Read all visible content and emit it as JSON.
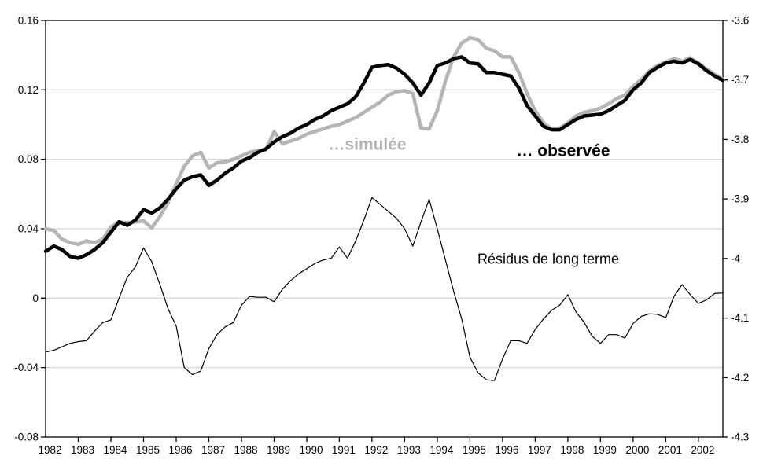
{
  "chart_data": {
    "type": "line",
    "title": "",
    "x_start_year": 1982,
    "x_step_years": 0.25,
    "grid": "horizontal-only",
    "frame": true,
    "background": "#ffffff",
    "gridline_color": "#c9c9c9",
    "frame_color": "#000000",
    "left_axis": {
      "range": [
        -0.08,
        0.16
      ],
      "tick_values": [
        0.16,
        0.12,
        0.08,
        0.04,
        0,
        -0.04,
        -0.08
      ],
      "tick_labels": [
        "0.16",
        "0.12",
        "0.08",
        "0.04",
        "0",
        "-0.04",
        "-0.08"
      ]
    },
    "right_axis": {
      "range": [
        -4.3,
        -3.6
      ],
      "tick_values": [
        -3.6,
        -3.7,
        -3.8,
        -3.9,
        -4,
        -4.1,
        -4.2,
        -4.3
      ],
      "tick_labels": [
        "-3.6",
        "-3.7",
        "-3.8",
        "-3.9",
        "-4",
        "-4.1",
        "-4.2",
        "-4.3"
      ]
    },
    "x_axis": {
      "year_labels": [
        "1982",
        "1983",
        "1984",
        "1985",
        "1986",
        "1987",
        "1988",
        "1989",
        "1990",
        "1991",
        "1992",
        "1993",
        "1994",
        "1995",
        "1996",
        "1997",
        "1998",
        "1999",
        "2000",
        "2001",
        "2002"
      ]
    },
    "series": [
      {
        "name": "simulée",
        "color": "#b5b5b5",
        "stroke_width": 4.5,
        "axis": "left",
        "values": [
          0.04,
          0.039,
          0.034,
          0.032,
          0.031,
          0.033,
          0.032,
          0.034,
          0.041,
          0.044,
          0.0435,
          0.044,
          0.0445,
          0.0405,
          0.047,
          0.055,
          0.066,
          0.076,
          0.082,
          0.084,
          0.075,
          0.078,
          0.0785,
          0.08,
          0.082,
          0.084,
          0.085,
          0.0855,
          0.096,
          0.089,
          0.0905,
          0.092,
          0.0945,
          0.096,
          0.0975,
          0.099,
          0.1,
          0.102,
          0.104,
          0.107,
          0.11,
          0.113,
          0.117,
          0.119,
          0.1195,
          0.118,
          0.098,
          0.0975,
          0.108,
          0.125,
          0.139,
          0.147,
          0.15,
          0.149,
          0.144,
          0.1425,
          0.139,
          0.139,
          0.13,
          0.118,
          0.108,
          0.101,
          0.0975,
          0.098,
          0.101,
          0.105,
          0.107,
          0.108,
          0.1095,
          0.112,
          0.115,
          0.117,
          0.122,
          0.126,
          0.131,
          0.134,
          0.136,
          0.138,
          0.1365,
          0.1385,
          0.1355,
          0.132,
          0.129,
          0.126
        ]
      },
      {
        "name": "observée",
        "color": "#000000",
        "stroke_width": 4.5,
        "axis": "left",
        "values": [
          0.027,
          0.03,
          0.028,
          0.024,
          0.023,
          0.025,
          0.028,
          0.032,
          0.038,
          0.044,
          0.042,
          0.045,
          0.051,
          0.049,
          0.052,
          0.057,
          0.063,
          0.068,
          0.07,
          0.071,
          0.065,
          0.068,
          0.072,
          0.075,
          0.079,
          0.081,
          0.084,
          0.086,
          0.09,
          0.093,
          0.095,
          0.098,
          0.1,
          0.103,
          0.105,
          0.108,
          0.11,
          0.112,
          0.116,
          0.124,
          0.133,
          0.134,
          0.1345,
          0.1325,
          0.129,
          0.124,
          0.117,
          0.124,
          0.134,
          0.1355,
          0.138,
          0.139,
          0.1355,
          0.135,
          0.13,
          0.13,
          0.129,
          0.128,
          0.121,
          0.111,
          0.105,
          0.099,
          0.097,
          0.097,
          0.1,
          0.103,
          0.105,
          0.1055,
          0.106,
          0.108,
          0.111,
          0.114,
          0.12,
          0.124,
          0.13,
          0.133,
          0.1355,
          0.1365,
          0.1355,
          0.1375,
          0.135,
          0.131,
          0.128,
          0.1255
        ]
      },
      {
        "name": "Résidus de long terme",
        "color": "#000000",
        "stroke_width": 1.2,
        "axis": "left",
        "values": [
          -0.031,
          -0.03,
          -0.028,
          -0.026,
          -0.025,
          -0.0245,
          -0.019,
          -0.014,
          -0.0125,
          0.0,
          0.012,
          0.018,
          0.029,
          0.021,
          0.008,
          -0.006,
          -0.016,
          -0.04,
          -0.044,
          -0.042,
          -0.029,
          -0.021,
          -0.0165,
          -0.014,
          -0.004,
          0.001,
          0.0005,
          0.0005,
          -0.002,
          0.005,
          0.01,
          0.014,
          0.017,
          0.02,
          0.022,
          0.023,
          0.0295,
          0.023,
          0.033,
          0.045,
          0.058,
          0.054,
          0.05,
          0.046,
          0.04,
          0.03,
          0.044,
          0.057,
          0.04,
          0.022,
          0.004,
          -0.012,
          -0.034,
          -0.043,
          -0.047,
          -0.0475,
          -0.035,
          -0.0245,
          -0.0245,
          -0.026,
          -0.018,
          -0.012,
          -0.007,
          -0.004,
          0.002,
          -0.008,
          -0.014,
          -0.022,
          -0.026,
          -0.021,
          -0.021,
          -0.023,
          -0.0145,
          -0.0105,
          -0.009,
          -0.0093,
          -0.0112,
          0.001,
          0.0078,
          0.002,
          -0.003,
          -0.001,
          0.0027,
          0.003
        ]
      }
    ],
    "annotations": [
      {
        "text": "…simulée",
        "color": "#b5b5b5",
        "bold": true,
        "font_size": 21,
        "x": 467,
        "y": 183
      },
      {
        "text": "… observée",
        "color": "#000000",
        "bold": true,
        "font_size": 21,
        "x": 716,
        "y": 191
      },
      {
        "text": "Résidus de long terme",
        "color": "#000000",
        "bold": false,
        "font_size": 18,
        "x": 697,
        "y": 329
      }
    ]
  },
  "layout_note": ""
}
